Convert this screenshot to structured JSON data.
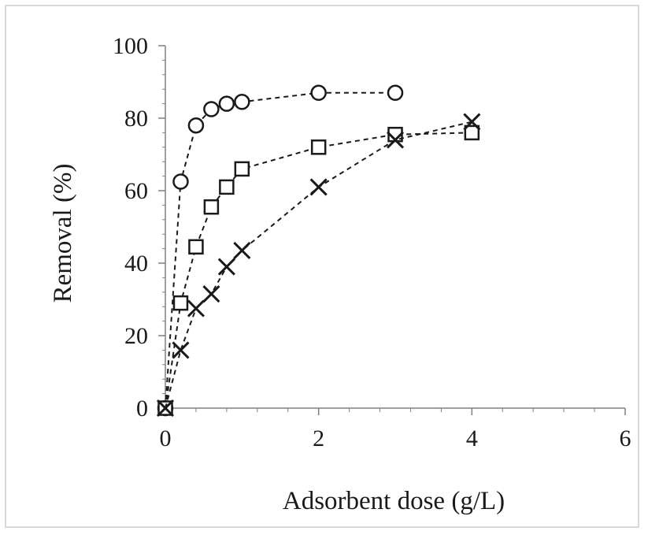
{
  "chart_data": {
    "type": "scatter",
    "title": "",
    "xlabel": "Adsorbent dose (g/L)",
    "ylabel": "Removal (%)",
    "xlim": [
      0,
      6
    ],
    "ylim": [
      0,
      100
    ],
    "x_ticks": [
      "0",
      "2",
      "4",
      "6"
    ],
    "y_ticks": [
      "0",
      "20",
      "40",
      "60",
      "80",
      "100"
    ],
    "grid": false,
    "legend": "none",
    "line_style": "dashed",
    "series": [
      {
        "marker": "circle",
        "x": [
          0,
          0.2,
          0.4,
          0.6,
          0.8,
          1,
          2,
          3
        ],
        "y": [
          0,
          62.5,
          78,
          82.5,
          84,
          84.5,
          87,
          87
        ]
      },
      {
        "marker": "square",
        "x": [
          0,
          0.2,
          0.4,
          0.6,
          0.8,
          1,
          2,
          3,
          4
        ],
        "y": [
          0,
          29,
          44.5,
          55.5,
          61,
          66,
          72,
          75.5,
          76
        ]
      },
      {
        "marker": "x",
        "x": [
          0,
          0.2,
          0.4,
          0.6,
          0.8,
          1,
          2,
          3,
          4
        ],
        "y": [
          0,
          16,
          27.5,
          31.5,
          39,
          43.5,
          61,
          74,
          79
        ]
      }
    ],
    "colors": {
      "series": "#1a1a1a",
      "axis": "#808080",
      "frame": "#d9d9d9"
    }
  }
}
